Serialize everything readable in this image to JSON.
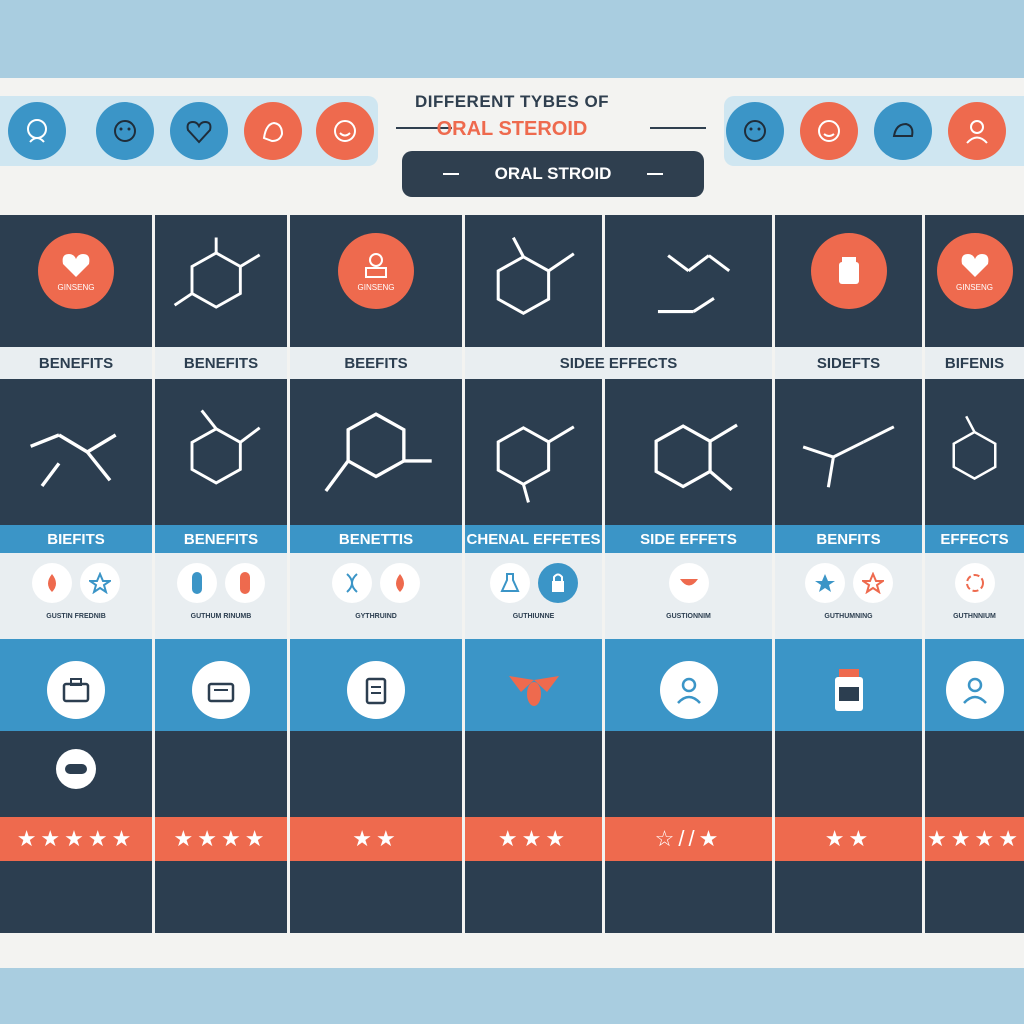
{
  "header": {
    "title_line1": "DIFFERENT TYBES OF",
    "title_line2": "ORAL STEROID",
    "subtitle": "ORAL STROID",
    "left_icons": [
      "blue-face-icon",
      "blue-face-icon",
      "blue-heart-icon",
      "orange-hand-icon",
      "orange-face-icon"
    ],
    "right_icons": [
      "blue-face-icon",
      "orange-face-icon",
      "blue-hand-icon",
      "orange-person-icon"
    ]
  },
  "row1": {
    "columns": [
      {
        "kind": "circle",
        "caption": "GINSENG"
      },
      {
        "kind": "molecule"
      },
      {
        "kind": "circle",
        "caption": "GINSENG"
      },
      {
        "kind": "molecule"
      },
      {
        "kind": "molecule"
      },
      {
        "kind": "circle",
        "caption": ""
      },
      {
        "kind": "circle",
        "caption": "GINSENG"
      }
    ]
  },
  "row1_labels": [
    "BENEFITS",
    "BENEFITS",
    "BEEFITS",
    "SIDEE EFFECTS",
    "SIDEFTS",
    "BIFENIS"
  ],
  "row2_labels": [
    "BIEFITS",
    "BENEFITS",
    "BENETTIS",
    "CHENAL EFFETES",
    "SIDE EFFETS",
    "BENFITS",
    "EFFECTS"
  ],
  "row3_captions": [
    "GUSTIN FREDNIB",
    "GUTHUM RINUMB",
    "GYTHRUIND",
    "GUTHIUNNE",
    "GUSTIONNIM",
    "GUTHUMNING",
    "GUTHNNIUM"
  ],
  "ratings": [
    "★★★★★",
    "★★★★",
    "★★",
    "★★★",
    "☆//★",
    "★★",
    "★★★★"
  ],
  "colors": {
    "navy": "#2c3e50",
    "blue": "#3b95c7",
    "orange": "#ee6a4e",
    "light": "#f3f3f1"
  }
}
